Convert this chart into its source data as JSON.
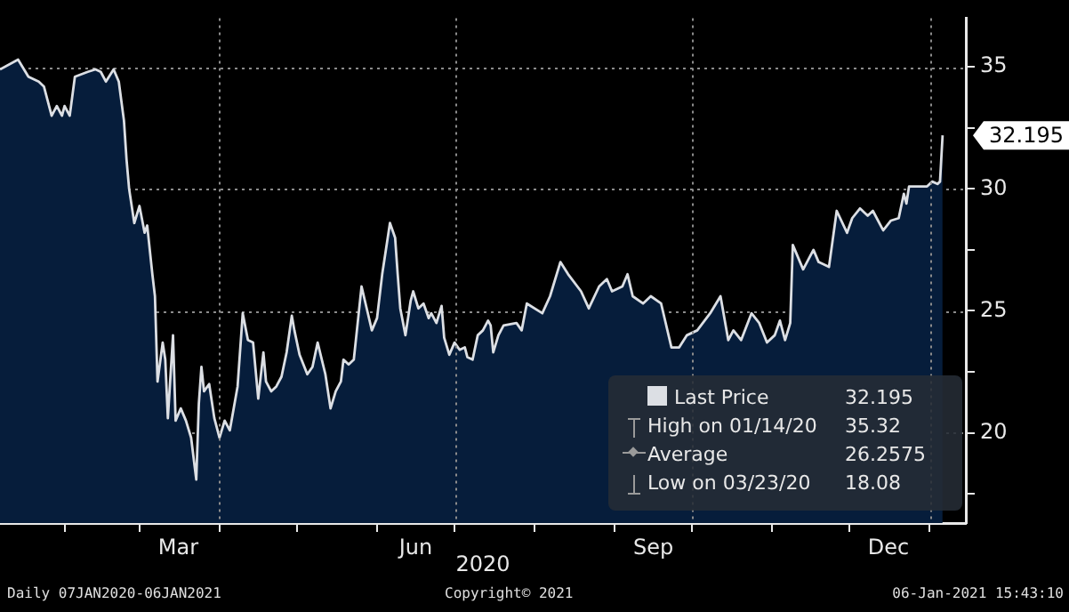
{
  "chart_data": {
    "type": "area",
    "xlabel": "2020",
    "x": [
      "2020-01-07",
      "2020-01-14",
      "2020-01-18",
      "2020-01-22",
      "2020-01-24",
      "2020-01-27",
      "2020-01-29",
      "2020-01-31",
      "2020-02-01",
      "2020-02-03",
      "2020-02-05",
      "2020-02-10",
      "2020-02-13",
      "2020-02-15",
      "2020-02-17",
      "2020-02-20",
      "2020-02-22",
      "2020-02-24",
      "2020-02-25",
      "2020-02-26",
      "2020-02-28",
      "2020-03-01",
      "2020-03-03",
      "2020-03-04",
      "2020-03-06",
      "2020-03-07",
      "2020-03-08",
      "2020-03-10",
      "2020-03-11",
      "2020-03-12",
      "2020-03-14",
      "2020-03-15",
      "2020-03-17",
      "2020-03-19",
      "2020-03-21",
      "2020-03-23",
      "2020-03-24",
      "2020-03-25",
      "2020-03-26",
      "2020-03-28",
      "2020-03-30",
      "2020-04-01",
      "2020-04-03",
      "2020-04-05",
      "2020-04-08",
      "2020-04-10",
      "2020-04-12",
      "2020-04-14",
      "2020-04-16",
      "2020-04-18",
      "2020-04-19",
      "2020-04-21",
      "2020-04-23",
      "2020-04-25",
      "2020-04-27",
      "2020-04-29",
      "2020-04-30",
      "2020-05-02",
      "2020-05-05",
      "2020-05-07",
      "2020-05-09",
      "2020-05-12",
      "2020-05-14",
      "2020-05-16",
      "2020-05-18",
      "2020-05-19",
      "2020-05-21",
      "2020-05-23",
      "2020-05-26",
      "2020-05-28",
      "2020-05-30",
      "2020-06-01",
      "2020-06-03",
      "2020-06-05",
      "2020-06-06",
      "2020-06-08",
      "2020-06-09",
      "2020-06-10",
      "2020-06-12",
      "2020-06-14",
      "2020-06-15",
      "2020-06-17",
      "2020-06-19",
      "2020-06-21",
      "2020-06-22",
      "2020-06-24",
      "2020-06-26",
      "2020-06-27",
      "2020-06-29",
      "2020-07-01",
      "2020-07-03",
      "2020-07-05",
      "2020-07-06",
      "2020-07-08",
      "2020-07-10",
      "2020-07-12",
      "2020-07-14",
      "2020-07-15",
      "2020-07-16",
      "2020-07-18",
      "2020-07-20",
      "2020-07-25",
      "2020-07-27",
      "2020-07-29",
      "2020-08-04",
      "2020-08-07",
      "2020-08-11",
      "2020-08-14",
      "2020-08-19",
      "2020-08-22",
      "2020-08-26",
      "2020-08-29",
      "2020-08-31",
      "2020-09-04",
      "2020-09-06",
      "2020-09-08",
      "2020-09-12",
      "2020-09-15",
      "2020-09-19",
      "2020-09-23",
      "2020-09-26",
      "2020-09-29",
      "2020-10-03",
      "2020-10-08",
      "2020-10-12",
      "2020-10-15",
      "2020-10-17",
      "2020-10-20",
      "2020-10-24",
      "2020-10-27",
      "2020-10-30",
      "2020-11-02",
      "2020-11-04",
      "2020-11-06",
      "2020-11-08",
      "2020-11-09",
      "2020-11-13",
      "2020-11-17",
      "2020-11-19",
      "2020-11-23",
      "2020-11-26",
      "2020-11-30",
      "2020-12-02",
      "2020-12-05",
      "2020-12-08",
      "2020-12-10",
      "2020-12-14",
      "2020-12-17",
      "2020-12-20",
      "2020-12-22",
      "2020-12-23",
      "2020-12-24",
      "2020-12-29",
      "2020-12-31",
      "2021-01-02",
      "2021-01-04",
      "2021-01-05",
      "2021-01-06"
    ],
    "series": [
      {
        "name": "Last Price",
        "color": "#dcdfe4",
        "values": [
          34.9,
          35.3,
          34.6,
          34.4,
          34.2,
          33.0,
          33.4,
          33.0,
          33.4,
          33.0,
          34.6,
          34.8,
          34.9,
          34.8,
          34.4,
          34.9,
          34.4,
          32.8,
          31.2,
          30.0,
          28.6,
          29.3,
          28.2,
          28.5,
          26.5,
          25.6,
          22.1,
          23.7,
          23.0,
          20.6,
          24.0,
          20.5,
          21.0,
          20.5,
          19.8,
          18.08,
          21.2,
          22.7,
          21.7,
          22.0,
          20.6,
          19.8,
          20.5,
          20.1,
          21.9,
          24.9,
          23.8,
          23.7,
          21.4,
          23.3,
          22.1,
          21.7,
          21.9,
          22.3,
          23.3,
          24.8,
          24.2,
          23.2,
          22.4,
          22.7,
          23.7,
          22.4,
          21.0,
          21.7,
          22.1,
          23.0,
          22.8,
          23.0,
          26.0,
          25.1,
          24.2,
          24.7,
          26.5,
          27.9,
          28.6,
          28.0,
          26.5,
          25.1,
          24.0,
          25.4,
          25.8,
          25.1,
          25.3,
          24.7,
          24.9,
          24.5,
          25.2,
          23.9,
          23.2,
          23.7,
          23.4,
          23.5,
          23.1,
          23.0,
          24.0,
          24.2,
          24.6,
          24.4,
          23.3,
          24.0,
          24.4,
          24.5,
          24.2,
          25.3,
          24.9,
          25.6,
          27.0,
          26.5,
          25.8,
          25.1,
          26.0,
          26.3,
          25.8,
          26.0,
          26.5,
          25.6,
          25.3,
          25.6,
          25.3,
          23.5,
          23.5,
          24.0,
          24.2,
          24.9,
          25.6,
          23.8,
          24.2,
          23.8,
          24.9,
          24.5,
          23.7,
          24.0,
          24.6,
          23.8,
          24.5,
          27.7,
          26.7,
          27.5,
          27.0,
          26.8,
          29.1,
          28.2,
          28.8,
          29.2,
          28.9,
          29.1,
          28.3,
          28.7,
          28.8,
          29.8,
          29.4,
          30.1,
          30.1,
          30.1,
          30.3,
          30.2,
          30.3,
          32.195
        ]
      }
    ],
    "xlim": [
      "2020-01-07",
      "2021-01-15"
    ],
    "xticks": [
      {
        "value": "2020-02-01",
        "label": null
      },
      {
        "value": "2020-03-01",
        "label": null
      },
      {
        "value": "2020-03-16",
        "label": "Mar"
      },
      {
        "value": "2020-04-01",
        "label": null
      },
      {
        "value": "2020-05-01",
        "label": null
      },
      {
        "value": "2020-06-01",
        "label": null
      },
      {
        "value": "2020-06-16",
        "label": "Jun"
      },
      {
        "value": "2020-07-01",
        "label": null
      },
      {
        "value": "2020-08-01",
        "label": null
      },
      {
        "value": "2020-09-01",
        "label": null
      },
      {
        "value": "2020-09-16",
        "label": "Sep"
      },
      {
        "value": "2020-10-01",
        "label": null
      },
      {
        "value": "2020-11-01",
        "label": null
      },
      {
        "value": "2020-12-01",
        "label": null
      },
      {
        "value": "2020-12-16",
        "label": "Dec"
      },
      {
        "value": "2021-01-01",
        "label": null
      }
    ],
    "ylim": [
      16.3,
      37.0
    ],
    "yticks": [
      {
        "value": 17.5,
        "label": null
      },
      20,
      {
        "value": 22.5,
        "label": null
      },
      25,
      {
        "value": 27.5,
        "label": null
      },
      30,
      {
        "value": 32.5,
        "label": null
      },
      35
    ],
    "grid": "y",
    "ref_lines": [
      {
        "axis": "x",
        "value": "2020-04-01",
        "label": null,
        "color": "#8c8c8c",
        "line_style": "dotted"
      },
      {
        "axis": "x",
        "value": "2020-07-01",
        "label": null,
        "color": "#8c8c8c",
        "line_style": "dotted"
      },
      {
        "axis": "x",
        "value": "2020-10-01",
        "label": null,
        "color": "#8c8c8c",
        "line_style": "dotted"
      },
      {
        "axis": "x",
        "value": "2021-01-01",
        "label": null,
        "color": "#8c8c8c",
        "line_style": "dotted"
      }
    ],
    "legend": "bottom right",
    "annotations": [
      {
        "text": "32.195",
        "x": "2021-01-06",
        "y": 32.195
      },
      "32.195",
      "High on 01/14/20",
      "35.32",
      "Average",
      "26.2575",
      "Low on 03/23/20",
      "18.08",
      "Daily 07JAN2020-06JAN2021",
      "Copyright© 2021",
      "06-Jan-2021 15:43:10"
    ]
  }
}
